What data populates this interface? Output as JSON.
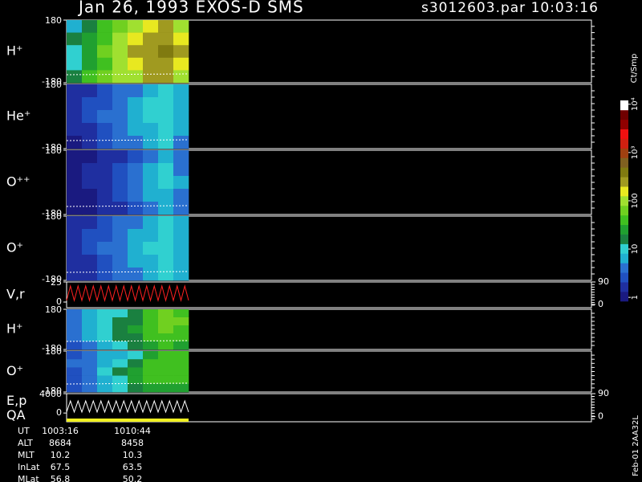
{
  "header": {
    "title": "Jan 26, 1993   EXOS-D SMS",
    "file": "s3012603.par  10:03:16"
  },
  "colorbar": {
    "label": "Ct/Smp",
    "log": true,
    "clim": [
      0.83,
      12000
    ],
    "colors": [
      "#1a1a80",
      "#1f2fa0",
      "#2050c0",
      "#2a70d0",
      "#20b0d0",
      "#30d0d0",
      "#1a8040",
      "#20a030",
      "#40c020",
      "#70d020",
      "#a0e030",
      "#e8e820",
      "#a09a20",
      "#807a10",
      "#806020",
      "#a04010",
      "#d02010",
      "#f01010",
      "#900000",
      "#700000",
      "#ffffff"
    ],
    "ticks": [
      1,
      10,
      100,
      {
        "value": 1000,
        "label": "10³"
      },
      {
        "value": 10000,
        "label": "10⁴"
      }
    ]
  },
  "chart_data": [
    {
      "type": "heatmap",
      "label": "H⁺",
      "ylim": [
        -180,
        180
      ],
      "yticks": [
        180,
        -180
      ],
      "values": [
        [
          8,
          20,
          40,
          60,
          100,
          150,
          200,
          120
        ],
        [
          15,
          30,
          50,
          80,
          150,
          250,
          300,
          150
        ],
        [
          10,
          25,
          60,
          100,
          200,
          300,
          400,
          200
        ],
        [
          12,
          30,
          50,
          90,
          150,
          250,
          300,
          150
        ],
        [
          20,
          40,
          60,
          80,
          120,
          200,
          250,
          120
        ]
      ]
    },
    {
      "type": "heatmap",
      "label": "He⁺",
      "ylim": [
        -180,
        180
      ],
      "yticks": [
        180,
        -180
      ],
      "values": [
        [
          2,
          2,
          3,
          4,
          5,
          8,
          10,
          6
        ],
        [
          2,
          3,
          3,
          5,
          6,
          9,
          12,
          8
        ],
        [
          2,
          3,
          4,
          5,
          7,
          10,
          12,
          8
        ],
        [
          2,
          2,
          3,
          4,
          6,
          8,
          10,
          6
        ],
        [
          1,
          2,
          3,
          4,
          5,
          7,
          9,
          5
        ]
      ]
    },
    {
      "type": "heatmap",
      "label": "O⁺⁺",
      "ylim": [
        -180,
        180
      ],
      "yticks": [
        180,
        -180
      ],
      "values": [
        [
          1,
          1,
          2,
          2,
          3,
          5,
          7,
          4
        ],
        [
          1,
          2,
          2,
          3,
          4,
          6,
          9,
          5
        ],
        [
          1,
          2,
          2,
          3,
          5,
          7,
          10,
          6
        ],
        [
          1,
          1,
          2,
          3,
          4,
          6,
          8,
          5
        ],
        [
          1,
          1,
          2,
          2,
          3,
          5,
          6,
          4
        ]
      ]
    },
    {
      "type": "heatmap",
      "label": "O⁺",
      "ylim": [
        -180,
        180
      ],
      "yticks": [
        180,
        -180
      ],
      "values": [
        [
          2,
          2,
          3,
          4,
          5,
          7,
          9,
          6
        ],
        [
          2,
          3,
          3,
          4,
          6,
          8,
          10,
          7
        ],
        [
          2,
          3,
          4,
          5,
          7,
          9,
          12,
          8
        ],
        [
          2,
          2,
          3,
          4,
          6,
          8,
          10,
          7
        ],
        [
          2,
          2,
          3,
          4,
          5,
          7,
          9,
          6
        ]
      ]
    },
    {
      "type": "line",
      "label": "V,r",
      "ylim": [
        -7,
        25
      ],
      "yticks": [
        25,
        0
      ],
      "y2lim": [
        -13,
        90
      ],
      "y2ticks": [
        90,
        0
      ],
      "series": [
        {
          "color": "#ff2020",
          "values": [
            2,
            20,
            2,
            20,
            2,
            20,
            2,
            20,
            2,
            20,
            2,
            20,
            2,
            20,
            2,
            20,
            2,
            20,
            2,
            20,
            2,
            20,
            2,
            20,
            2,
            20,
            2,
            20,
            2,
            20,
            2,
            20,
            2
          ]
        }
      ]
    },
    {
      "type": "heatmap",
      "label": "H⁺",
      "ylim": [
        -180,
        180
      ],
      "yticks": [
        180,
        -180
      ],
      "values": [
        [
          4,
          6,
          10,
          12,
          15,
          40,
          60,
          50
        ],
        [
          5,
          8,
          12,
          15,
          20,
          50,
          70,
          60
        ],
        [
          4,
          7,
          12,
          20,
          25,
          50,
          60,
          50
        ],
        [
          5,
          6,
          10,
          15,
          20,
          40,
          50,
          40
        ],
        [
          3,
          5,
          8,
          12,
          15,
          30,
          40,
          30
        ]
      ]
    },
    {
      "type": "heatmap",
      "label": "O⁺",
      "ylim": [
        -180,
        180
      ],
      "yticks": [
        180,
        -180
      ],
      "values": [
        [
          3,
          4,
          6,
          8,
          12,
          30,
          40,
          35
        ],
        [
          4,
          5,
          8,
          12,
          20,
          40,
          50,
          40
        ],
        [
          3,
          5,
          10,
          15,
          30,
          45,
          50,
          40
        ],
        [
          3,
          4,
          8,
          12,
          25,
          35,
          40,
          35
        ],
        [
          3,
          4,
          6,
          10,
          15,
          25,
          30,
          25
        ]
      ]
    },
    {
      "type": "line",
      "label": "E,p",
      "sublabel": "QA",
      "ylim": [
        -1800,
        4000
      ],
      "yticks": [
        4000,
        0
      ],
      "y2lim": [
        -20,
        90
      ],
      "y2ticks": [
        90,
        0
      ],
      "series": [
        {
          "color": "#ffffff",
          "values": [
            200,
            2500,
            200,
            2500,
            200,
            2500,
            200,
            2500,
            200,
            2500,
            200,
            2500,
            200,
            2500,
            200,
            2500,
            200,
            2500,
            200,
            2500,
            200,
            2500,
            200,
            2500,
            200,
            2500,
            200,
            2500,
            200,
            2500,
            200,
            2500,
            200
          ]
        }
      ]
    }
  ],
  "info": {
    "rows": [
      [
        "UT",
        "1003:16",
        "1010:44"
      ],
      [
        "ALT",
        "8684",
        "8458"
      ],
      [
        "MLT",
        "10.2",
        "10.3"
      ],
      [
        "InLat",
        "67.5",
        "63.5"
      ],
      [
        "MLat",
        "56.8",
        "50.2"
      ]
    ]
  },
  "footer_note": "Feb-01 2AA32L"
}
